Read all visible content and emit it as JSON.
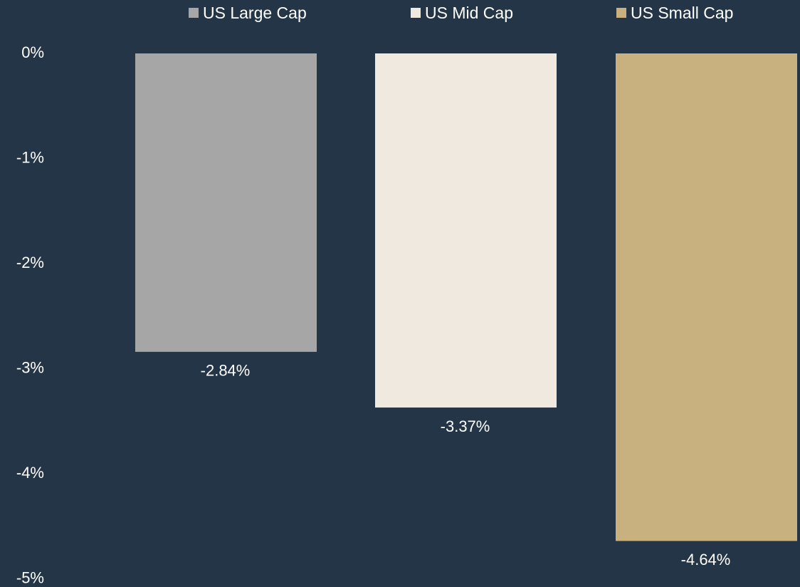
{
  "chart_data": {
    "type": "bar",
    "categories": [
      "US Large Cap",
      "US Mid Cap",
      "US Small Cap"
    ],
    "values": [
      -2.84,
      -3.37,
      -4.64
    ],
    "value_labels": [
      "-2.84%",
      "-3.37%",
      "-4.64%"
    ],
    "colors": [
      "#a6a6a6",
      "#f0e9df",
      "#c9b07f"
    ],
    "legend": [
      "US Large Cap",
      "US Mid Cap",
      "US Small Cap"
    ],
    "legend_position": "top",
    "ylim": [
      -5,
      0
    ],
    "yticks": [
      0,
      -1,
      -2,
      -3,
      -4,
      -5
    ],
    "ytick_labels": [
      "0%",
      "-1%",
      "-2%",
      "-3%",
      "-4%",
      "-5%"
    ],
    "grid": false,
    "background": "#233546"
  }
}
